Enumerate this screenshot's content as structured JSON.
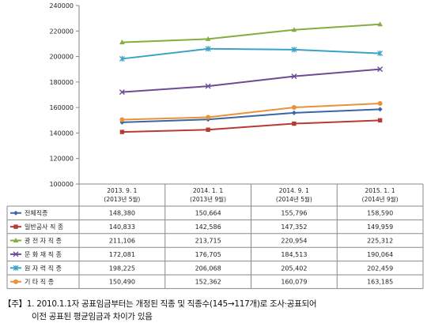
{
  "chart_data": {
    "type": "line",
    "categories": [
      [
        "2013. 9. 1",
        "(2013년 5월)"
      ],
      [
        "2014. 1. 1",
        "(2013년 9월)"
      ],
      [
        "2014. 9. 1",
        "(2014년 5월)"
      ],
      [
        "2015. 1. 1",
        "(2014년 9월)"
      ]
    ],
    "ylim": [
      100000,
      240000
    ],
    "yticks": [
      100000,
      120000,
      140000,
      160000,
      180000,
      200000,
      220000,
      240000
    ],
    "grid": false,
    "legend": "table-below",
    "series": [
      {
        "name": "전체직종",
        "values": [
          148380,
          150664,
          155796,
          158590
        ],
        "display": [
          "148,380",
          "150,664",
          "155,796",
          "158,590"
        ],
        "color": "#3a66a6",
        "marker": "diamond"
      },
      {
        "name": "일반공사 직 종",
        "values": [
          140833,
          142586,
          147352,
          149959
        ],
        "display": [
          "140,833",
          "142,586",
          "147,352",
          "149,959"
        ],
        "color": "#b83a35",
        "marker": "square"
      },
      {
        "name": "광 전 자 직 종",
        "values": [
          211106,
          213715,
          220954,
          225312
        ],
        "display": [
          "211,106",
          "213,715",
          "220,954",
          "225,312"
        ],
        "color": "#86ab3e",
        "marker": "triangle"
      },
      {
        "name": "문 화 재 직 종",
        "values": [
          172081,
          176705,
          184513,
          190064
        ],
        "display": [
          "172,081",
          "176,705",
          "184,513",
          "190,064"
        ],
        "color": "#6b4c96",
        "marker": "x"
      },
      {
        "name": "원 자 력 직 종",
        "values": [
          198225,
          206068,
          205402,
          202459
        ],
        "display": [
          "198,225",
          "206,068",
          "205,402",
          "202,459"
        ],
        "color": "#3aa2c4",
        "marker": "star"
      },
      {
        "name": "기 타 직 종",
        "values": [
          150490,
          152362,
          160079,
          163185
        ],
        "display": [
          "150,490",
          "152,362",
          "160,079",
          "163,185"
        ],
        "color": "#e8923a",
        "marker": "circle"
      }
    ]
  },
  "notes": {
    "line1": "【주】1. 2010.1.1자 공표임금부터는 개정된 직종 및 직종수(145→117개)로 조사·공표되어",
    "line2": "이전 공표된 평균임금과 차이가 있음"
  }
}
